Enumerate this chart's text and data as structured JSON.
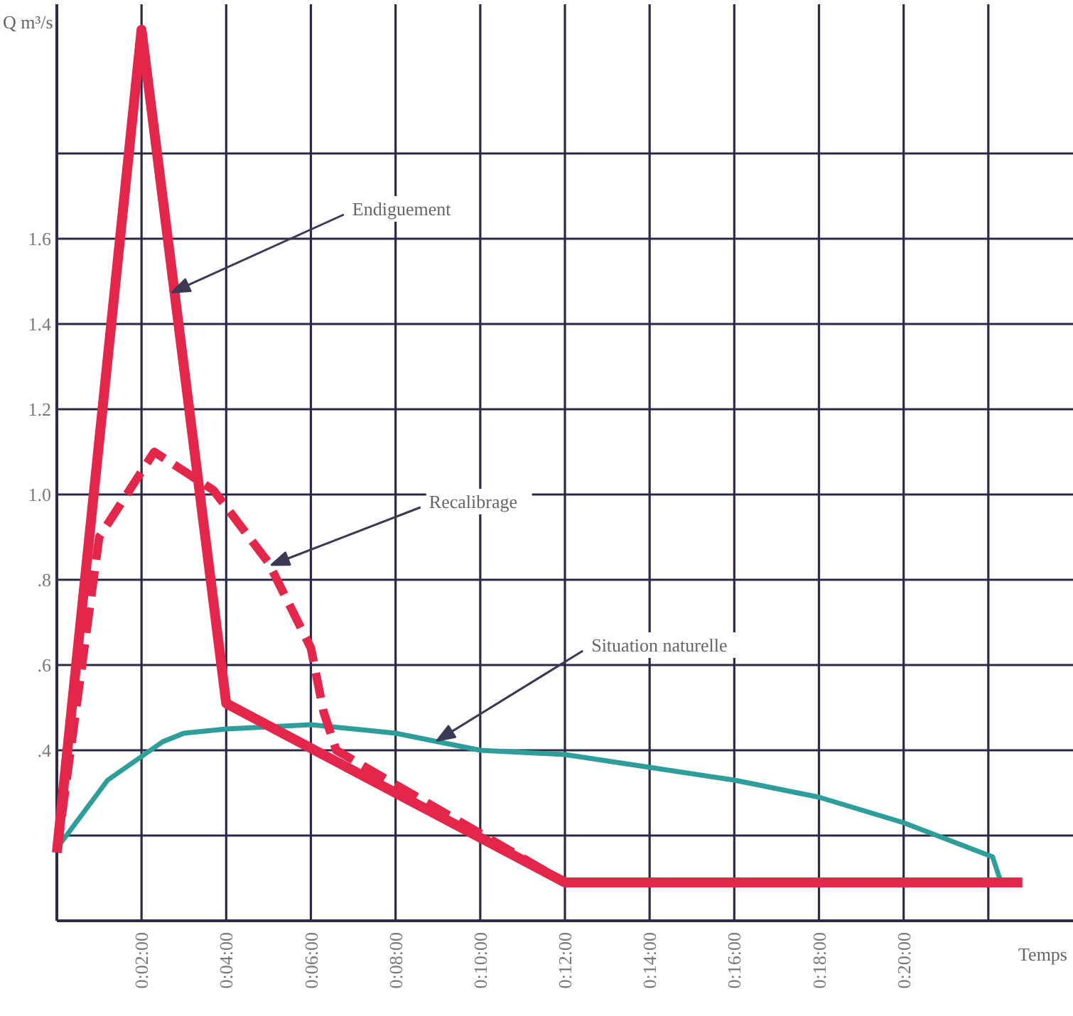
{
  "chart_data": {
    "type": "line",
    "ylabel": "Q m³/s",
    "xlabel": "Temps",
    "xlim": [
      0,
      24
    ],
    "xticks": [
      {
        "value": 2,
        "label": "0:02:00"
      },
      {
        "value": 4,
        "label": "0:04:00"
      },
      {
        "value": 6,
        "label": "0:06:00"
      },
      {
        "value": 8,
        "label": "0:08:00"
      },
      {
        "value": 10,
        "label": "0:10:00"
      },
      {
        "value": 12,
        "label": "0:12:00"
      },
      {
        "value": 14,
        "label": "0:14:00"
      },
      {
        "value": 16,
        "label": "0:16:00"
      },
      {
        "value": 18,
        "label": "0:18:00"
      },
      {
        "value": 20,
        "label": "0:20:00"
      },
      {
        "value": 22,
        "label": null
      }
    ],
    "ylim": [
      0,
      2.15
    ],
    "yticks": [
      {
        "value": 0.2,
        "label": null
      },
      {
        "value": 0.4,
        "label": ".4"
      },
      {
        "value": 0.6,
        "label": ".6"
      },
      {
        "value": 0.8,
        "label": ".8"
      },
      {
        "value": 1.0,
        "label": "1.0"
      },
      {
        "value": 1.2,
        "label": "1.2"
      },
      {
        "value": 1.4,
        "label": "1.4"
      },
      {
        "value": 1.6,
        "label": "1.6"
      },
      {
        "value": 1.8,
        "label": null
      }
    ],
    "grid": true,
    "series": [
      {
        "color": "#2e9e9a",
        "line_style": "solid",
        "x": [
          0,
          1.2,
          2.5,
          3,
          4,
          6,
          8,
          10,
          12,
          14,
          16,
          18,
          20,
          22.1,
          22.3
        ],
        "values": [
          0.17,
          0.33,
          0.42,
          0.44,
          0.45,
          0.46,
          0.44,
          0.4,
          0.39,
          0.36,
          0.33,
          0.29,
          0.23,
          0.15,
          0.09
        ]
      },
      {
        "color": "#e3264a",
        "line_style": "dashed",
        "x": [
          0,
          1,
          2.3,
          3.7,
          5,
          6,
          6.3,
          6.6,
          12,
          22.8
        ],
        "values": [
          0.16,
          0.9,
          1.1,
          1.01,
          0.84,
          0.64,
          0.49,
          0.4,
          0.09,
          0.09
        ]
      },
      {
        "color": "#e3264a",
        "line_style": "solid",
        "x": [
          0,
          2,
          4,
          12,
          22.8
        ],
        "values": [
          0.16,
          2.09,
          0.51,
          0.09,
          0.09
        ]
      }
    ],
    "annotations": [
      {
        "text": "Endiguement",
        "x": 2.85,
        "y": 1.48
      },
      {
        "text": "Recalibrage",
        "x": 5.2,
        "y": 0.84
      },
      {
        "text": "Situation naturelle",
        "x": 9.1,
        "y": 0.43
      }
    ]
  }
}
